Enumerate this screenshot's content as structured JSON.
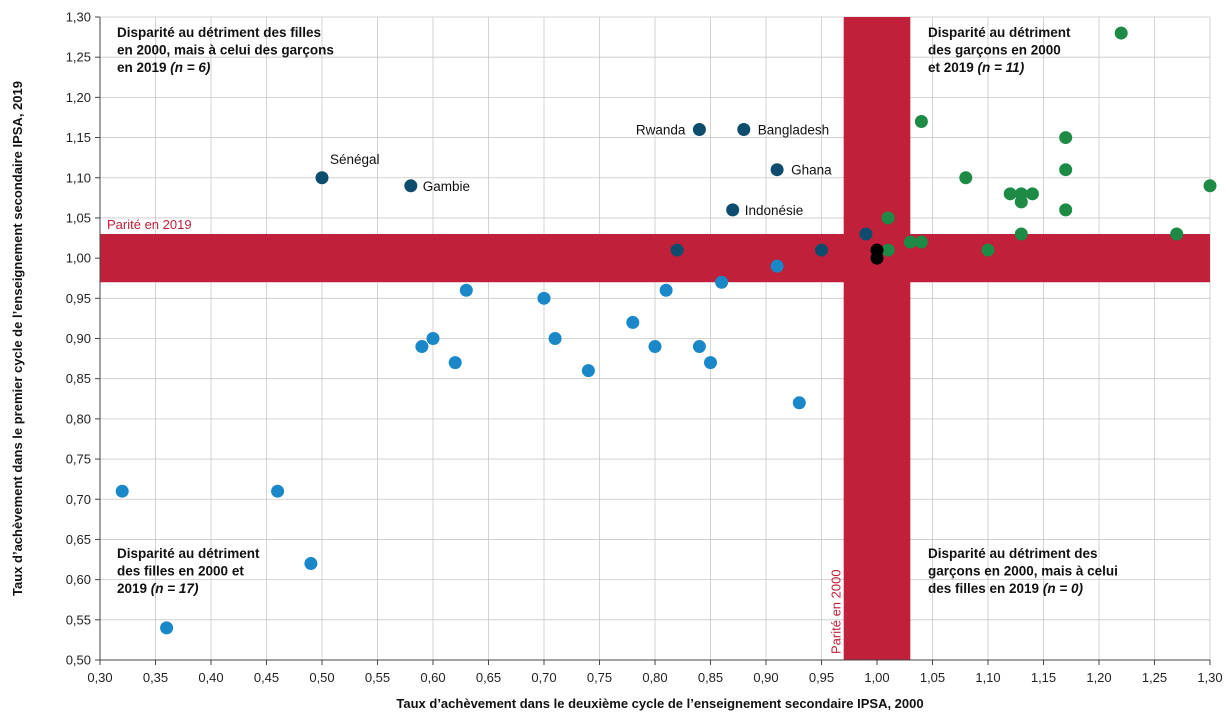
{
  "chart_data": {
    "type": "scatter",
    "xlabel": "Taux d’achèvement dans le deuxième cycle de l’enseignement secondaire IPSA, 2000",
    "ylabel": "Taux d’achèvement dans le premier cycle de l’enseignement secondaire IPSA, 2019",
    "xlim": [
      0.3,
      1.3
    ],
    "ylim": [
      0.5,
      1.3
    ],
    "x_ticks": [
      "0,30",
      "0,35",
      "0,40",
      "0,45",
      "0,50",
      "0,55",
      "0,60",
      "0,65",
      "0,70",
      "0,75",
      "0,80",
      "0,85",
      "0,90",
      "0,95",
      "1,00",
      "1,05",
      "1,10",
      "1,15",
      "1,20",
      "1,25",
      "1,30"
    ],
    "y_ticks": [
      "0,50",
      "0,55",
      "0,60",
      "0,65",
      "0,70",
      "0,75",
      "0,80",
      "0,85",
      "0,90",
      "0,95",
      "1,00",
      "1,05",
      "1,10",
      "1,15",
      "1,20",
      "1,25",
      "1,30"
    ],
    "grid": true,
    "parity_band": {
      "low": 0.97,
      "high": 1.03,
      "color": "#c0203a"
    },
    "parity_labels": {
      "y": "Parité en 2019",
      "x": "Parité en 2000"
    },
    "quadrants": [
      {
        "position": "top-left",
        "lines": [
          "Disparité au détriment des filles",
          "en 2000, mais à celui des garçons",
          "en 2019 "
        ],
        "n": "(n = 6)"
      },
      {
        "position": "top-right",
        "lines": [
          "Disparité au détriment",
          "des garçons en 2000",
          "et 2019  "
        ],
        "n": "(n = 11)"
      },
      {
        "position": "bottom-left",
        "lines": [
          "Disparité au détriment",
          "des filles en 2000 et",
          "2019  "
        ],
        "n": "(n = 17)"
      },
      {
        "position": "bottom-right",
        "lines": [
          "Disparité au détriment des",
          "garçons en 2000, mais à celui",
          "des filles en 2019 "
        ],
        "n": "(n = 0)"
      }
    ],
    "series": [
      {
        "color": "#1a87c9",
        "points": [
          {
            "x": 0.32,
            "y": 0.71
          },
          {
            "x": 0.36,
            "y": 0.54
          },
          {
            "x": 0.46,
            "y": 0.71
          },
          {
            "x": 0.49,
            "y": 0.62
          },
          {
            "x": 0.59,
            "y": 0.89
          },
          {
            "x": 0.6,
            "y": 0.9
          },
          {
            "x": 0.62,
            "y": 0.87
          },
          {
            "x": 0.63,
            "y": 0.96
          },
          {
            "x": 0.7,
            "y": 0.95
          },
          {
            "x": 0.71,
            "y": 0.9
          },
          {
            "x": 0.74,
            "y": 0.86
          },
          {
            "x": 0.78,
            "y": 0.92
          },
          {
            "x": 0.8,
            "y": 0.89
          },
          {
            "x": 0.81,
            "y": 0.96
          },
          {
            "x": 0.84,
            "y": 0.89
          },
          {
            "x": 0.85,
            "y": 0.87
          },
          {
            "x": 0.86,
            "y": 0.97
          },
          {
            "x": 0.91,
            "y": 0.99
          },
          {
            "x": 0.93,
            "y": 0.82
          }
        ]
      },
      {
        "color": "#0e4c6e",
        "points": [
          {
            "x": 0.5,
            "y": 1.1,
            "label": "Sénégal"
          },
          {
            "x": 0.58,
            "y": 1.09,
            "label": "Gambie"
          },
          {
            "x": 0.82,
            "y": 1.01
          },
          {
            "x": 0.84,
            "y": 1.16,
            "label": "Rwanda"
          },
          {
            "x": 0.87,
            "y": 1.06,
            "label": "Indonésie"
          },
          {
            "x": 0.88,
            "y": 1.16,
            "label": "Bangladesh"
          },
          {
            "x": 0.91,
            "y": 1.11,
            "label": "Ghana"
          },
          {
            "x": 0.95,
            "y": 1.01
          },
          {
            "x": 0.99,
            "y": 1.03
          }
        ]
      },
      {
        "color": "#1d8a45",
        "points": [
          {
            "x": 1.01,
            "y": 1.05
          },
          {
            "x": 1.01,
            "y": 1.01
          },
          {
            "x": 1.03,
            "y": 1.02
          },
          {
            "x": 1.04,
            "y": 1.02
          },
          {
            "x": 1.04,
            "y": 1.17
          },
          {
            "x": 1.08,
            "y": 1.1
          },
          {
            "x": 1.1,
            "y": 1.01
          },
          {
            "x": 1.12,
            "y": 1.08
          },
          {
            "x": 1.13,
            "y": 1.08
          },
          {
            "x": 1.13,
            "y": 1.07
          },
          {
            "x": 1.13,
            "y": 1.03
          },
          {
            "x": 1.14,
            "y": 1.08
          },
          {
            "x": 1.17,
            "y": 1.15
          },
          {
            "x": 1.17,
            "y": 1.11
          },
          {
            "x": 1.17,
            "y": 1.06
          },
          {
            "x": 1.22,
            "y": 1.28
          },
          {
            "x": 1.27,
            "y": 1.03
          },
          {
            "x": 1.3,
            "y": 1.09
          }
        ]
      },
      {
        "color": "#000000",
        "points": [
          {
            "x": 1.0,
            "y": 1.01
          },
          {
            "x": 1.0,
            "y": 1.0
          }
        ]
      }
    ]
  }
}
